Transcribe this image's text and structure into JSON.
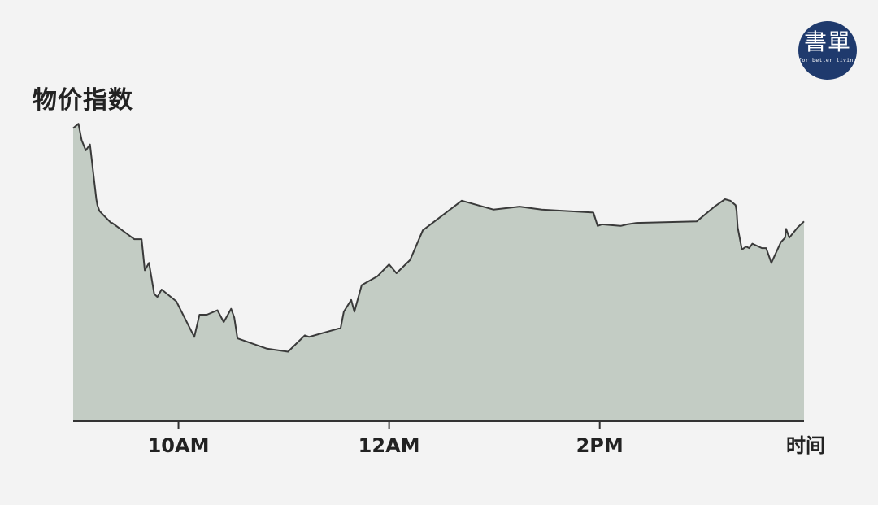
{
  "logo": {
    "mark": "書單",
    "tagline": "for better living",
    "bg_color": "#1f3a6d"
  },
  "colors": {
    "area_fill": "#c3ccc4",
    "line": "#3a3a3a",
    "axis": "#333333",
    "text": "#222222",
    "background": "#f3f3f3"
  },
  "chart_data": {
    "type": "area",
    "title": "",
    "ylabel": "物价指数",
    "xlabel": "时间",
    "x_ticks": [
      {
        "x": 10.0,
        "label": "10AM"
      },
      {
        "x": 12.0,
        "label": "12AM"
      },
      {
        "x": 14.0,
        "label": "2PM"
      }
    ],
    "xlim": [
      9.0,
      15.94
    ],
    "ylim": [
      0,
      100
    ],
    "grid": false,
    "legend": "none",
    "x": [
      9.0,
      9.05,
      9.08,
      9.12,
      9.16,
      9.22,
      9.23,
      9.25,
      9.25,
      9.36,
      9.37,
      9.58,
      9.65,
      9.68,
      9.72,
      9.77,
      9.8,
      9.84,
      9.98,
      10.15,
      10.2,
      10.27,
      10.37,
      10.43,
      10.5,
      10.53,
      10.56,
      10.84,
      11.04,
      11.2,
      11.24,
      11.54,
      11.57,
      11.64,
      11.67,
      11.74,
      11.89,
      12.0,
      12.07,
      12.2,
      12.32,
      12.69,
      12.99,
      13.24,
      13.45,
      13.94,
      13.98,
      14.02,
      14.2,
      14.26,
      14.35,
      14.92,
      15.09,
      15.19,
      15.24,
      15.29,
      15.3,
      15.31,
      15.35,
      15.39,
      15.42,
      15.45,
      15.54,
      15.58,
      15.63,
      15.72,
      15.76,
      15.77,
      15.8,
      15.88,
      15.94
    ],
    "y": [
      99,
      100.5,
      95,
      91.5,
      93.5,
      75,
      73,
      71,
      71,
      67,
      67,
      61.5,
      61.5,
      51,
      53.5,
      43,
      42,
      44.5,
      40.5,
      28.5,
      36,
      36,
      37.5,
      33.5,
      38,
      35,
      28,
      24.5,
      23.5,
      29,
      28.5,
      31.5,
      37,
      41,
      37,
      46,
      49,
      53,
      50,
      54.5,
      64.5,
      74.5,
      71.5,
      72.5,
      71.5,
      70.5,
      66,
      66.5,
      66,
      66.5,
      67,
      67.5,
      72.5,
      75,
      74.5,
      73,
      71,
      65.5,
      58,
      59,
      58.5,
      60,
      58.5,
      58.5,
      53.5,
      60.5,
      62,
      65,
      62,
      65.5,
      67.5
    ]
  }
}
